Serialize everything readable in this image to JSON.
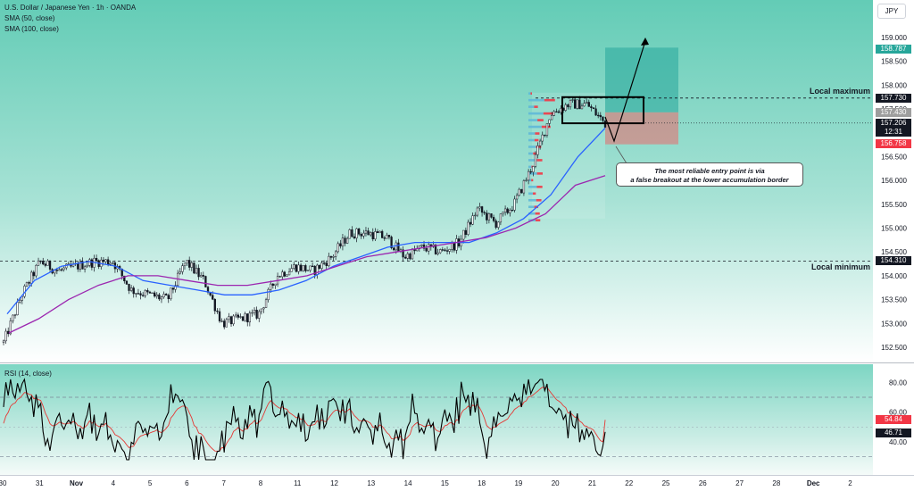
{
  "header": {
    "symbol_line": "U.S. Dollar / Japanese Yen · 1h · OANDA",
    "indicator_1": "SMA (50, close)",
    "indicator_2": "SMA (100, close)",
    "currency_button": "JPY"
  },
  "rsi": {
    "label": "RSI (14, close)"
  },
  "annotations": {
    "local_maximum": "Local maximum",
    "local_minimum": "Local minimum",
    "note_line_1": "The most reliable entry point is via",
    "note_line_2": "a false breakout at the lower accumulation border"
  },
  "price_tags": {
    "target": "158.787",
    "local_max": "157.730",
    "entry": "157.430",
    "current": "157.206",
    "countdown": "12:31",
    "stop": "156.758",
    "local_min": "154.310",
    "rsi_signal": "54.84",
    "rsi_value": "46.71"
  },
  "colors": {
    "background_top": "#6ccfb9",
    "background_bottom": "#ffffff",
    "sma50": "#2962ff",
    "sma100": "#9c27b0",
    "rsi_line": "#000000",
    "rsi_ma": "#e53935",
    "target_zone": "#26a69a",
    "stop_zone": "#e57373",
    "volume_profile_up": "#5fb8d8",
    "volume_profile_down": "#f23645"
  },
  "chart_data": {
    "type": "candlestick",
    "timeframe": "1h",
    "x_ticks": [
      "30",
      "31",
      "Nov",
      "4",
      "5",
      "6",
      "7",
      "8",
      "11",
      "12",
      "13",
      "14",
      "15",
      "18",
      "19",
      "20",
      "21",
      "22",
      "25",
      "26",
      "27",
      "28",
      "Dec",
      "2"
    ],
    "y_ticks": [
      "159.000",
      "158.500",
      "158.000",
      "157.500",
      "157.000",
      "156.500",
      "156.000",
      "155.500",
      "155.000",
      "154.500",
      "154.000",
      "153.500",
      "153.000",
      "152.500"
    ],
    "ylim": [
      152.22,
      159.25
    ],
    "key_levels": {
      "local_maximum": 157.73,
      "local_minimum": 154.31,
      "entry": 157.43,
      "target": 158.787,
      "stop": 156.758,
      "current": 157.206
    },
    "price_path": [
      {
        "day": "30",
        "price": 152.6
      },
      {
        "day": "30",
        "price": 153.6
      },
      {
        "day": "31",
        "price": 154.3
      },
      {
        "day": "31",
        "price": 154.1
      },
      {
        "day": "Nov",
        "price": 154.2
      },
      {
        "day": "Nov",
        "price": 154.3
      },
      {
        "day": "4",
        "price": 154.3
      },
      {
        "day": "4",
        "price": 153.7
      },
      {
        "day": "5",
        "price": 153.6
      },
      {
        "day": "5",
        "price": 153.5
      },
      {
        "day": "6",
        "price": 154.3
      },
      {
        "day": "6",
        "price": 153.9
      },
      {
        "day": "7",
        "price": 153.0
      },
      {
        "day": "7",
        "price": 153.1
      },
      {
        "day": "8",
        "price": 153.2
      },
      {
        "day": "8",
        "price": 154.0
      },
      {
        "day": "11",
        "price": 154.2
      },
      {
        "day": "11",
        "price": 154.1
      },
      {
        "day": "12",
        "price": 154.4
      },
      {
        "day": "12",
        "price": 154.9
      },
      {
        "day": "13",
        "price": 154.9
      },
      {
        "day": "13",
        "price": 154.8
      },
      {
        "day": "14",
        "price": 154.4
      },
      {
        "day": "14",
        "price": 154.6
      },
      {
        "day": "15",
        "price": 154.5
      },
      {
        "day": "15",
        "price": 154.7
      },
      {
        "day": "18",
        "price": 155.4
      },
      {
        "day": "18",
        "price": 155.1
      },
      {
        "day": "19",
        "price": 155.5
      },
      {
        "day": "19",
        "price": 156.3
      },
      {
        "day": "20",
        "price": 157.4
      },
      {
        "day": "20",
        "price": 157.6
      },
      {
        "day": "21",
        "price": 157.6
      },
      {
        "day": "21",
        "price": 157.2
      }
    ],
    "series": [
      {
        "name": "SMA (50, close)",
        "values": [
          153.2,
          153.9,
          154.2,
          154.3,
          154.2,
          153.9,
          153.8,
          153.7,
          153.6,
          153.6,
          153.7,
          153.9,
          154.2,
          154.4,
          154.6,
          154.7,
          154.7,
          154.7,
          154.9,
          155.2,
          155.7,
          156.5,
          157.1
        ]
      },
      {
        "name": "SMA (100, close)",
        "values": [
          152.8,
          153.1,
          153.5,
          153.8,
          154.0,
          154.0,
          153.9,
          153.8,
          153.8,
          153.9,
          154.0,
          154.2,
          154.4,
          154.5,
          154.6,
          154.7,
          154.8,
          155.0,
          155.3,
          155.9,
          156.1
        ]
      }
    ],
    "rsi": {
      "label": "RSI (14, close)",
      "y_ticks": [
        "80.00",
        "60.00",
        "40.00"
      ],
      "ylim": [
        25,
        85
      ],
      "levels": [
        70,
        30
      ],
      "value": 46.71,
      "signal": 54.84
    }
  }
}
